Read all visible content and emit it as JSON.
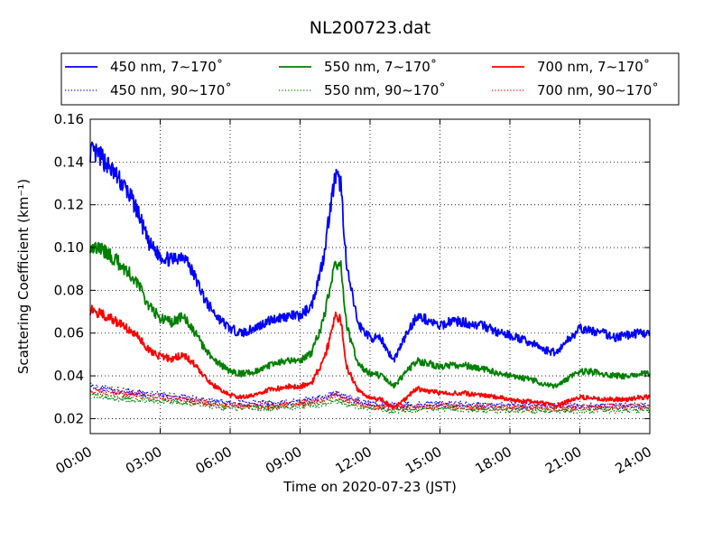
{
  "chart_data": {
    "type": "line",
    "title": "NL200723.dat",
    "xlabel": "Time on 2020-07-23 (JST)",
    "ylabel": "Scattering Coefficient (km⁻¹)",
    "xlim": [
      "00:00",
      "24:00"
    ],
    "ylim": [
      0.013,
      0.16
    ],
    "xticks": [
      "00:00",
      "03:00",
      "06:00",
      "09:00",
      "12:00",
      "15:00",
      "18:00",
      "21:00",
      "24:00"
    ],
    "yticks": [
      "0.02",
      "0.04",
      "0.06",
      "0.08",
      "0.10",
      "0.12",
      "0.14",
      "0.16"
    ],
    "grid": true,
    "legend_position": "top, above plot",
    "series": [
      {
        "name": "450 nm, 7∼170˚",
        "color": "#0000ff",
        "style": "solid",
        "x": [
          "00:00",
          "00:30",
          "01:00",
          "01:30",
          "02:00",
          "02:30",
          "03:00",
          "03:30",
          "04:00",
          "04:30",
          "05:00",
          "05:30",
          "06:00",
          "06:30",
          "07:00",
          "07:30",
          "08:00",
          "08:30",
          "09:00",
          "09:30",
          "10:00",
          "10:15",
          "10:30",
          "10:45",
          "11:00",
          "11:30",
          "12:00",
          "12:30",
          "13:00",
          "13:30",
          "14:00",
          "14:30",
          "15:00",
          "15:30",
          "16:00",
          "16:30",
          "17:00",
          "17:30",
          "18:00",
          "18:30",
          "19:00",
          "19:30",
          "20:00",
          "20:30",
          "21:00",
          "21:30",
          "22:00",
          "22:30",
          "23:00",
          "23:30",
          "24:00"
        ],
        "values": [
          0.145,
          0.142,
          0.135,
          0.128,
          0.118,
          0.102,
          0.096,
          0.094,
          0.097,
          0.086,
          0.074,
          0.067,
          0.062,
          0.06,
          0.062,
          0.065,
          0.067,
          0.068,
          0.068,
          0.073,
          0.095,
          0.115,
          0.133,
          0.13,
          0.09,
          0.064,
          0.058,
          0.057,
          0.047,
          0.058,
          0.068,
          0.066,
          0.063,
          0.066,
          0.065,
          0.064,
          0.063,
          0.06,
          0.059,
          0.057,
          0.055,
          0.052,
          0.051,
          0.057,
          0.062,
          0.061,
          0.06,
          0.058,
          0.059,
          0.06,
          0.06
        ]
      },
      {
        "name": "550 nm, 7∼170˚",
        "color": "#008000",
        "style": "solid",
        "x": [
          "00:00",
          "00:30",
          "01:00",
          "01:30",
          "02:00",
          "02:30",
          "03:00",
          "03:30",
          "04:00",
          "04:30",
          "05:00",
          "05:30",
          "06:00",
          "06:30",
          "07:00",
          "07:30",
          "08:00",
          "08:30",
          "09:00",
          "09:30",
          "10:00",
          "10:15",
          "10:30",
          "10:45",
          "11:00",
          "11:30",
          "12:00",
          "12:30",
          "13:00",
          "13:30",
          "14:00",
          "14:30",
          "15:00",
          "15:30",
          "16:00",
          "16:30",
          "17:00",
          "17:30",
          "18:00",
          "18:30",
          "19:00",
          "19:30",
          "20:00",
          "20:30",
          "21:00",
          "21:30",
          "22:00",
          "22:30",
          "23:00",
          "23:30",
          "24:00"
        ],
        "values": [
          0.101,
          0.099,
          0.095,
          0.09,
          0.084,
          0.073,
          0.067,
          0.065,
          0.068,
          0.06,
          0.051,
          0.046,
          0.042,
          0.041,
          0.042,
          0.044,
          0.046,
          0.047,
          0.047,
          0.051,
          0.066,
          0.08,
          0.093,
          0.091,
          0.063,
          0.045,
          0.041,
          0.04,
          0.035,
          0.041,
          0.047,
          0.046,
          0.044,
          0.045,
          0.045,
          0.044,
          0.043,
          0.041,
          0.04,
          0.039,
          0.038,
          0.036,
          0.035,
          0.039,
          0.042,
          0.042,
          0.041,
          0.04,
          0.04,
          0.041,
          0.041
        ]
      },
      {
        "name": "700 nm, 7∼170˚",
        "color": "#ff0000",
        "style": "solid",
        "x": [
          "00:00",
          "00:30",
          "01:00",
          "01:30",
          "02:00",
          "02:30",
          "03:00",
          "03:30",
          "04:00",
          "04:30",
          "05:00",
          "05:30",
          "06:00",
          "06:30",
          "07:00",
          "07:30",
          "08:00",
          "08:30",
          "09:00",
          "09:30",
          "10:00",
          "10:15",
          "10:30",
          "10:45",
          "11:00",
          "11:30",
          "12:00",
          "12:30",
          "13:00",
          "13:30",
          "14:00",
          "14:30",
          "15:00",
          "15:30",
          "16:00",
          "16:30",
          "17:00",
          "17:30",
          "18:00",
          "18:30",
          "19:00",
          "19:30",
          "20:00",
          "20:30",
          "21:00",
          "21:30",
          "22:00",
          "22:30",
          "23:00",
          "23:30",
          "24:00"
        ],
        "values": [
          0.071,
          0.069,
          0.066,
          0.063,
          0.059,
          0.052,
          0.049,
          0.048,
          0.05,
          0.045,
          0.038,
          0.034,
          0.031,
          0.03,
          0.031,
          0.033,
          0.034,
          0.035,
          0.035,
          0.037,
          0.047,
          0.056,
          0.068,
          0.066,
          0.044,
          0.033,
          0.03,
          0.029,
          0.025,
          0.029,
          0.034,
          0.033,
          0.032,
          0.032,
          0.032,
          0.031,
          0.031,
          0.03,
          0.029,
          0.028,
          0.028,
          0.027,
          0.026,
          0.028,
          0.03,
          0.03,
          0.029,
          0.029,
          0.029,
          0.03,
          0.03
        ]
      },
      {
        "name": "450 nm, 90∼170˚",
        "color": "#0000ff",
        "style": "dotted",
        "x": [
          "00:00",
          "02:00",
          "04:00",
          "06:00",
          "08:00",
          "09:00",
          "10:00",
          "10:30",
          "11:00",
          "12:00",
          "13:00",
          "15:00",
          "18:00",
          "21:00",
          "24:00"
        ],
        "values": [
          0.035,
          0.032,
          0.03,
          0.027,
          0.027,
          0.028,
          0.03,
          0.032,
          0.03,
          0.027,
          0.026,
          0.027,
          0.026,
          0.026,
          0.026
        ]
      },
      {
        "name": "550 nm, 90∼170˚",
        "color": "#008000",
        "style": "dotted",
        "x": [
          "00:00",
          "02:00",
          "04:00",
          "06:00",
          "08:00",
          "09:00",
          "10:00",
          "10:30",
          "11:00",
          "12:00",
          "13:00",
          "15:00",
          "18:00",
          "21:00",
          "24:00"
        ],
        "values": [
          0.031,
          0.029,
          0.028,
          0.025,
          0.025,
          0.026,
          0.027,
          0.029,
          0.027,
          0.025,
          0.024,
          0.025,
          0.024,
          0.024,
          0.024
        ]
      },
      {
        "name": "700 nm, 90∼170˚",
        "color": "#ff0000",
        "style": "dotted",
        "x": [
          "00:00",
          "02:00",
          "04:00",
          "06:00",
          "08:00",
          "09:00",
          "10:00",
          "10:30",
          "11:00",
          "12:00",
          "13:00",
          "15:00",
          "18:00",
          "21:00",
          "24:00"
        ],
        "values": [
          0.033,
          0.031,
          0.029,
          0.026,
          0.026,
          0.027,
          0.029,
          0.031,
          0.029,
          0.026,
          0.025,
          0.026,
          0.025,
          0.025,
          0.026
        ]
      }
    ]
  }
}
